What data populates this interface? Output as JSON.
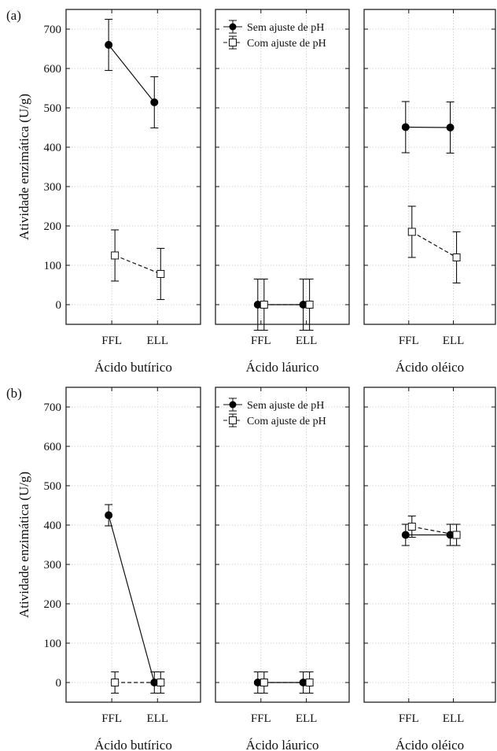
{
  "chart_data": [
    {
      "label": "(a)",
      "type": "line",
      "ylabel": "Atividade enzimática (U/g)",
      "ylim": [
        -50,
        750
      ],
      "yticks": [
        0,
        100,
        200,
        300,
        400,
        500,
        600,
        700
      ],
      "grid": true,
      "legend_placement": "top-left of middle panel",
      "legend": [
        "Sem ajuste de pH",
        "Com ajuste de pH"
      ],
      "panels": [
        {
          "title": "Ácido butírico",
          "categories": [
            "FFL",
            "ELL"
          ],
          "series": [
            {
              "name": "Sem ajuste de pH",
              "values": [
                660,
                514
              ],
              "err": [
                65,
                65
              ]
            },
            {
              "name": "Com ajuste de pH",
              "values": [
                125,
                78
              ],
              "err": [
                65,
                65
              ]
            }
          ]
        },
        {
          "title": "Ácido láurico",
          "categories": [
            "FFL",
            "ELL"
          ],
          "series": [
            {
              "name": "Sem ajuste de pH",
              "values": [
                0,
                0
              ],
              "err": [
                65,
                65
              ]
            },
            {
              "name": "Com ajuste de pH",
              "values": [
                0,
                0
              ],
              "err": [
                65,
                65
              ]
            }
          ]
        },
        {
          "title": "Ácido oléico",
          "categories": [
            "FFL",
            "ELL"
          ],
          "series": [
            {
              "name": "Sem ajuste de pH",
              "values": [
                451,
                450
              ],
              "err": [
                65,
                65
              ]
            },
            {
              "name": "Com ajuste de pH",
              "values": [
                185,
                120
              ],
              "err": [
                65,
                65
              ]
            }
          ]
        }
      ]
    },
    {
      "label": "(b)",
      "type": "line",
      "ylabel": "Atividade enzimática (U/g)",
      "ylim": [
        -50,
        750
      ],
      "yticks": [
        0,
        100,
        200,
        300,
        400,
        500,
        600,
        700
      ],
      "grid": true,
      "legend_placement": "top-left of middle panel",
      "legend": [
        "Sem ajuste de pH",
        "Com ajuste de pH"
      ],
      "panels": [
        {
          "title": "Ácido butírico",
          "categories": [
            "FFL",
            "ELL"
          ],
          "series": [
            {
              "name": "Sem ajuste de pH",
              "values": [
                425,
                0
              ],
              "err": [
                27,
                27
              ]
            },
            {
              "name": "Com ajuste de pH",
              "values": [
                0,
                0
              ],
              "err": [
                27,
                27
              ]
            }
          ]
        },
        {
          "title": "Ácido láurico",
          "categories": [
            "FFL",
            "ELL"
          ],
          "series": [
            {
              "name": "Sem ajuste de pH",
              "values": [
                0,
                0
              ],
              "err": [
                27,
                27
              ]
            },
            {
              "name": "Com ajuste de pH",
              "values": [
                0,
                0
              ],
              "err": [
                27,
                27
              ]
            }
          ]
        },
        {
          "title": "Ácido oléico",
          "categories": [
            "FFL",
            "ELL"
          ],
          "series": [
            {
              "name": "Sem ajuste de pH",
              "values": [
                375,
                375
              ],
              "err": [
                27,
                27
              ]
            },
            {
              "name": "Com ajuste de pH",
              "values": [
                396,
                375
              ],
              "err": [
                27,
                27
              ]
            }
          ]
        }
      ]
    }
  ]
}
